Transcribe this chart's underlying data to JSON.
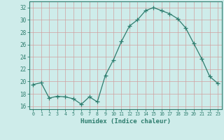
{
  "x": [
    0,
    1,
    2,
    3,
    4,
    5,
    6,
    7,
    8,
    9,
    10,
    11,
    12,
    13,
    14,
    15,
    16,
    17,
    18,
    19,
    20,
    21,
    22,
    23
  ],
  "y": [
    19.5,
    19.8,
    17.3,
    17.6,
    17.5,
    17.2,
    16.3,
    17.5,
    16.7,
    21.0,
    23.5,
    26.5,
    29.0,
    30.0,
    31.5,
    32.0,
    31.5,
    31.0,
    30.2,
    28.7,
    26.2,
    23.7,
    20.8,
    19.7
  ],
  "line_color": "#2e7d6e",
  "marker": "+",
  "marker_size": 4,
  "bg_color": "#ceecea",
  "grid_color": "#b8d8d5",
  "axis_color": "#2e7d6e",
  "xlabel": "Humidex (Indice chaleur)",
  "xlim": [
    -0.5,
    23.5
  ],
  "ylim": [
    15.5,
    33.0
  ],
  "yticks": [
    16,
    18,
    20,
    22,
    24,
    26,
    28,
    30,
    32
  ],
  "xticks": [
    0,
    1,
    2,
    3,
    4,
    5,
    6,
    7,
    8,
    9,
    10,
    11,
    12,
    13,
    14,
    15,
    16,
    17,
    18,
    19,
    20,
    21,
    22,
    23
  ]
}
